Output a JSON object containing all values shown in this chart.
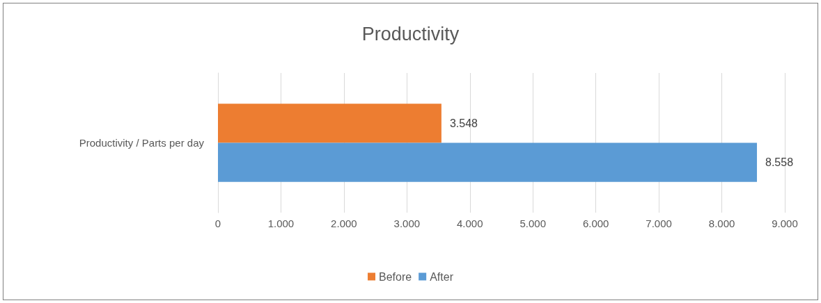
{
  "chart_data": {
    "type": "bar",
    "orientation": "horizontal",
    "title": "Productivity",
    "categories": [
      "Productivity / Parts per day"
    ],
    "series": [
      {
        "name": "Before",
        "color": "#ed7d31",
        "values": [
          3548
        ],
        "value_labels": [
          "3.548"
        ]
      },
      {
        "name": "After",
        "color": "#5b9bd5",
        "values": [
          8558
        ],
        "value_labels": [
          "8.558"
        ]
      }
    ],
    "xlim": [
      0,
      9000
    ],
    "xticks": [
      0,
      {
        "value": 1000,
        "label": "1.000"
      },
      {
        "value": 2000,
        "label": "2.000"
      },
      {
        "value": 3000,
        "label": "3.000"
      },
      {
        "value": 4000,
        "label": "4.000"
      },
      {
        "value": 5000,
        "label": "5.000"
      },
      {
        "value": 6000,
        "label": "6.000"
      },
      {
        "value": 7000,
        "label": "7.000"
      },
      {
        "value": 8000,
        "label": "8.000"
      },
      {
        "value": 9000,
        "label": "9.000"
      }
    ],
    "grid": "x",
    "legend": "bottom"
  }
}
